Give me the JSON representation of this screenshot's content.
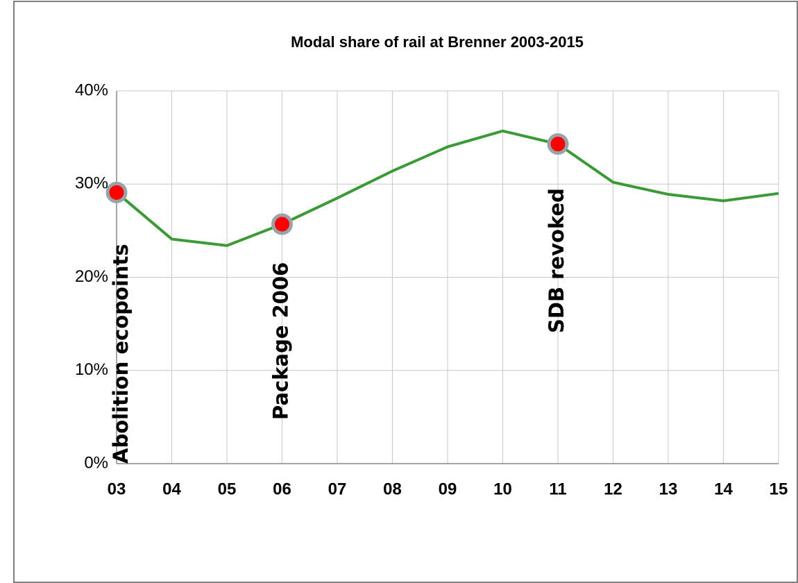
{
  "chart_data": {
    "type": "line",
    "title": "Modal share of rail at Brenner 2003-2015",
    "categories": [
      "03",
      "04",
      "05",
      "06",
      "07",
      "08",
      "09",
      "10",
      "11",
      "12",
      "13",
      "14",
      "15"
    ],
    "series": [
      {
        "name": "Modal share of rail",
        "color": "#3a9a35",
        "values": [
          29.1,
          24.1,
          23.4,
          25.7,
          28.5,
          31.4,
          34.0,
          35.7,
          34.3,
          30.2,
          28.9,
          28.2,
          29.0
        ]
      }
    ],
    "ylim": [
      0,
      40
    ],
    "yticks": [
      {
        "value": 0,
        "label": "0%"
      },
      {
        "value": 10,
        "label": "10%"
      },
      {
        "value": 20,
        "label": "20%"
      },
      {
        "value": 30,
        "label": "30%"
      },
      {
        "value": 40,
        "label": "40%"
      }
    ],
    "grid": true,
    "marker_color": "#ff0000",
    "annotations": [
      {
        "text": "Abolition ecopoints",
        "x": "03"
      },
      {
        "text": "Package 2006",
        "x": "06"
      },
      {
        "text": "SDB revoked",
        "x": "11"
      }
    ]
  }
}
